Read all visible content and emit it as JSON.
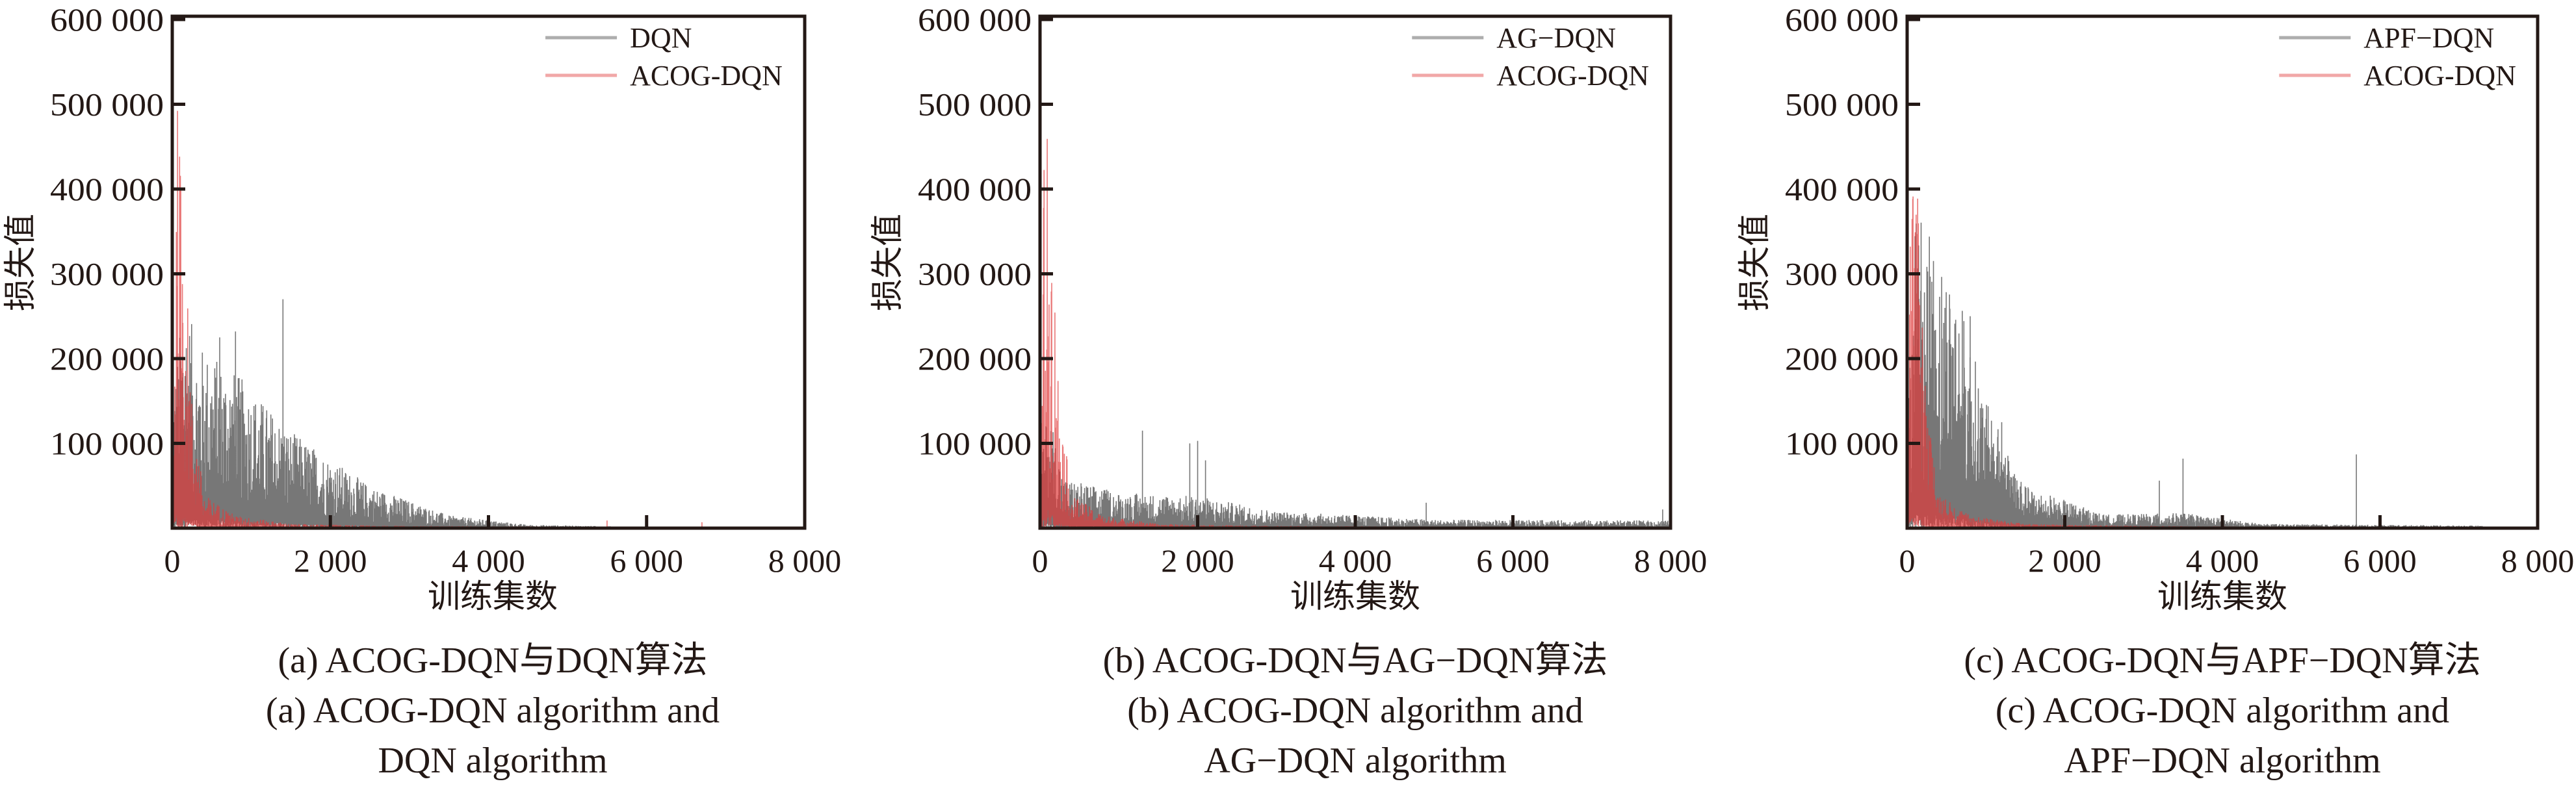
{
  "colors": {
    "baseline": "#4a4a4a",
    "acog": "#e03c3c",
    "axis": "#231815"
  },
  "chart_data": [
    {
      "type": "line",
      "xlabel": "训练集数",
      "ylabel": "损失值",
      "xlim": [
        0,
        8000
      ],
      "ylim": [
        0,
        600000
      ],
      "xticks": [
        {
          "v": 0,
          "label": "0"
        },
        {
          "v": 2000,
          "label": "2 000"
        },
        {
          "v": 4000,
          "label": "4 000"
        },
        {
          "v": 6000,
          "label": "6 000"
        },
        {
          "v": 8000,
          "label": "8 000"
        }
      ],
      "yticks": [
        {
          "v": 100000,
          "label": "100 000"
        },
        {
          "v": 200000,
          "label": "200 000"
        },
        {
          "v": 300000,
          "label": "300 000"
        },
        {
          "v": 400000,
          "label": "400 000"
        },
        {
          "v": 500000,
          "label": "500 000"
        },
        {
          "v": 600000,
          "label": "600 000"
        }
      ],
      "legend_position": "top-right",
      "caption": [
        "(a) ACOG-DQN与DQN算法",
        "(a) ACOG-DQN algorithm and",
        "DQN algorithm"
      ],
      "series": [
        {
          "name": "DQN",
          "color_key": "baseline",
          "x_end": 7300,
          "envelope": [
            [
              0,
              150000
            ],
            [
              150,
              280000
            ],
            [
              300,
              220000
            ],
            [
              800,
              185000
            ],
            [
              1500,
              115000
            ],
            [
              2500,
              50000
            ],
            [
              3500,
              15000
            ],
            [
              4500,
              4000
            ],
            [
              6000,
              1500
            ],
            [
              7300,
              500
            ]
          ],
          "spikes": [
            [
              1400,
              270000
            ],
            [
              800,
              232000
            ],
            [
              600,
              225000
            ]
          ]
        },
        {
          "name": "ACOG-DQN",
          "color_key": "acog",
          "x_end": 7200,
          "envelope": [
            [
              0,
              30000
            ],
            [
              60,
              515000
            ],
            [
              150,
              365000
            ],
            [
              250,
              150000
            ],
            [
              400,
              40000
            ],
            [
              800,
              15000
            ],
            [
              1500,
              5000
            ],
            [
              3000,
              2500
            ],
            [
              7200,
              1500
            ]
          ],
          "spikes": [
            [
              5500,
              9000
            ],
            [
              6700,
              7000
            ]
          ]
        }
      ]
    },
    {
      "type": "line",
      "xlabel": "训练集数",
      "ylabel": "损失值",
      "xlim": [
        0,
        8000
      ],
      "ylim": [
        0,
        600000
      ],
      "xticks": [
        {
          "v": 0,
          "label": "0"
        },
        {
          "v": 2000,
          "label": "2 000"
        },
        {
          "v": 4000,
          "label": "4 000"
        },
        {
          "v": 6000,
          "label": "6 000"
        },
        {
          "v": 8000,
          "label": "8 000"
        }
      ],
      "yticks": [
        {
          "v": 100000,
          "label": "100 000"
        },
        {
          "v": 200000,
          "label": "200 000"
        },
        {
          "v": 300000,
          "label": "300 000"
        },
        {
          "v": 400000,
          "label": "400 000"
        },
        {
          "v": 500000,
          "label": "500 000"
        },
        {
          "v": 600000,
          "label": "600 000"
        }
      ],
      "legend_position": "top-right",
      "caption": [
        "(b) ACOG-DQN与AG−DQN算法",
        "(b) ACOG-DQN algorithm and",
        "AG−DQN algorithm"
      ],
      "series": [
        {
          "name": "AG−DQN",
          "color_key": "baseline",
          "x_end": 8000,
          "envelope": [
            [
              0,
              60000
            ],
            [
              100,
              150000
            ],
            [
              300,
              60000
            ],
            [
              1000,
              42000
            ],
            [
              2000,
              38000
            ],
            [
              3000,
              20000
            ],
            [
              5000,
              10000
            ],
            [
              8000,
              9000
            ]
          ],
          "spikes": [
            [
              1300,
              115000
            ],
            [
              1900,
              100000
            ],
            [
              2000,
              103000
            ],
            [
              2100,
              80000
            ],
            [
              4900,
              30000
            ],
            [
              7900,
              22000
            ]
          ]
        },
        {
          "name": "ACOG-DQN",
          "color_key": "acog",
          "x_end": 8000,
          "envelope": [
            [
              0,
              30000
            ],
            [
              60,
              520000
            ],
            [
              150,
              370000
            ],
            [
              250,
              150000
            ],
            [
              400,
              40000
            ],
            [
              800,
              15000
            ],
            [
              1500,
              5000
            ],
            [
              3000,
              2500
            ],
            [
              8000,
              1500
            ]
          ],
          "spikes": []
        }
      ]
    },
    {
      "type": "line",
      "xlabel": "训练集数",
      "ylabel": "损失值",
      "xlim": [
        0,
        8000
      ],
      "ylim": [
        0,
        600000
      ],
      "xticks": [
        {
          "v": 0,
          "label": "0"
        },
        {
          "v": 2000,
          "label": "2 000"
        },
        {
          "v": 4000,
          "label": "4 000"
        },
        {
          "v": 6000,
          "label": "6 000"
        },
        {
          "v": 8000,
          "label": "8 000"
        }
      ],
      "yticks": [
        {
          "v": 100000,
          "label": "100 000"
        },
        {
          "v": 200000,
          "label": "200 000"
        },
        {
          "v": 300000,
          "label": "300 000"
        },
        {
          "v": 400000,
          "label": "400 000"
        },
        {
          "v": 500000,
          "label": "500 000"
        },
        {
          "v": 600000,
          "label": "600 000"
        }
      ],
      "legend_position": "top-right",
      "caption": [
        "(c) ACOG-DQN与APF−DQN算法",
        "(c) ACOG-DQN algorithm and",
        "APF−DQN algorithm"
      ],
      "series": [
        {
          "name": "APF−DQN",
          "color_key": "baseline",
          "x_end": 7300,
          "envelope": [
            [
              0,
              100000
            ],
            [
              100,
              400000
            ],
            [
              300,
              340000
            ],
            [
              600,
              300000
            ],
            [
              1000,
              150000
            ],
            [
              1500,
              50000
            ],
            [
              2500,
              16000
            ],
            [
              3500,
              18000
            ],
            [
              4500,
              5000
            ],
            [
              7300,
              3000
            ]
          ],
          "spikes": [
            [
              3500,
              82000
            ],
            [
              5700,
              87000
            ],
            [
              3200,
              56000
            ],
            [
              1200,
              125000
            ],
            [
              800,
              250000
            ]
          ]
        },
        {
          "name": "ACOG-DQN",
          "color_key": "acog",
          "x_end": 5500,
          "envelope": [
            [
              0,
              30000
            ],
            [
              60,
              520000
            ],
            [
              150,
              360000
            ],
            [
              250,
              150000
            ],
            [
              400,
              40000
            ],
            [
              800,
              15000
            ],
            [
              1500,
              5000
            ],
            [
              3000,
              2500
            ],
            [
              5500,
              1500
            ]
          ],
          "spikes": []
        }
      ]
    }
  ]
}
